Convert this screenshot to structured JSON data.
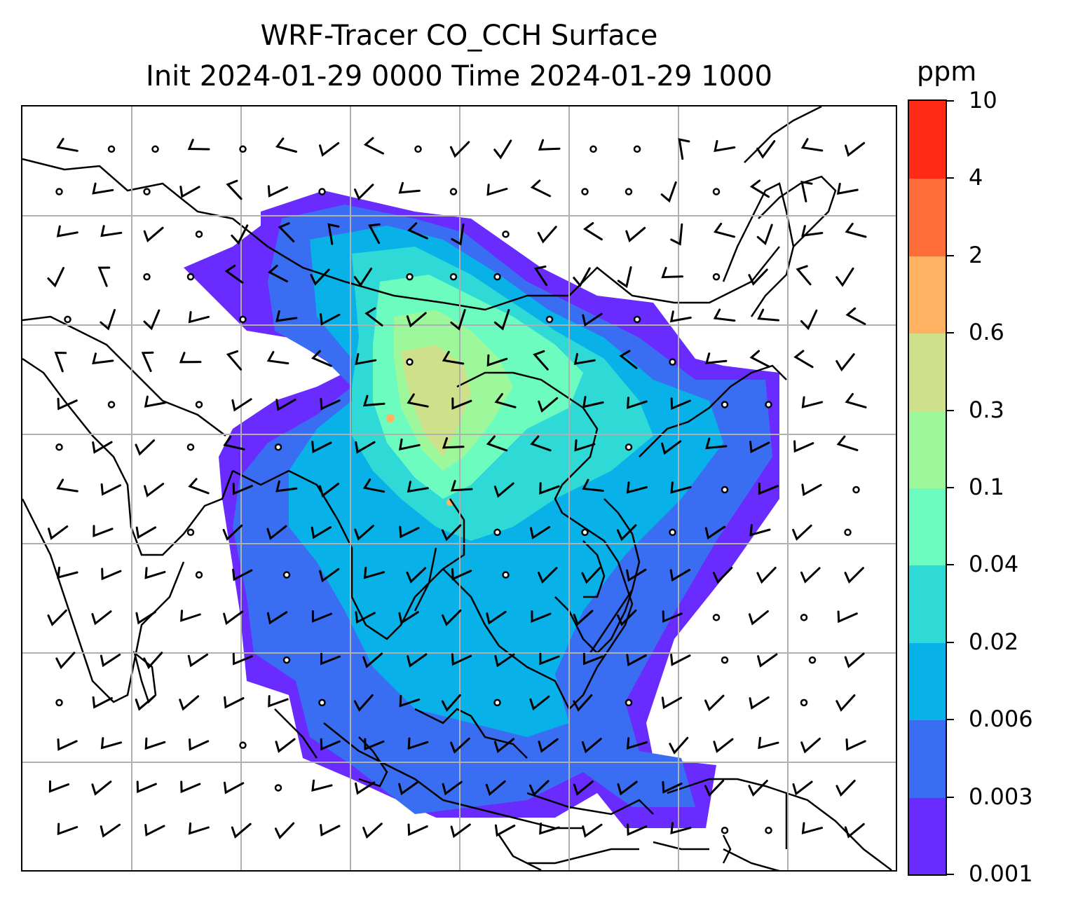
{
  "title": {
    "line1": "WRF-Tracer CO_CCH Surface",
    "line2": "Init 2024-01-29 0000 Time 2024-01-29 1000"
  },
  "colorbar": {
    "unit": "ppm",
    "levels": [
      "0.001",
      "0.003",
      "0.006",
      "0.02",
      "0.04",
      "0.1",
      "0.3",
      "0.6",
      "2",
      "4",
      "10"
    ],
    "colors": [
      "#6a2bff",
      "#3a6ef2",
      "#08b1e8",
      "#2fdad6",
      "#6cfcc0",
      "#9cf89b",
      "#cfe08a",
      "#ffb261",
      "#ff6e3a",
      "#ff2b17"
    ]
  },
  "map": {
    "gridlines": true,
    "coastline_color": "#000000",
    "wind_barbs": true
  }
}
